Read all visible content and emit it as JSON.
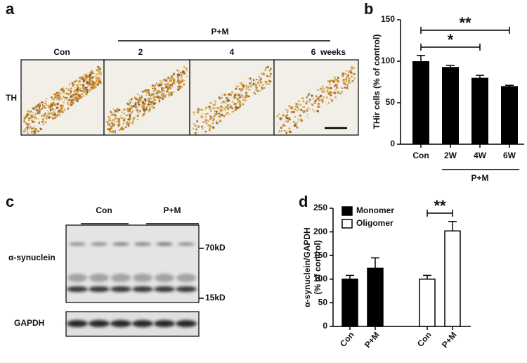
{
  "panel_a": {
    "letter": "a",
    "group_label": "P+M",
    "columns": [
      "Con",
      "2",
      "4",
      "6"
    ],
    "unit": "weeks",
    "row_label": "TH"
  },
  "panel_c": {
    "letter": "c",
    "groups": [
      "Con",
      "P+M"
    ],
    "rows": [
      "α-synuclein",
      "GAPDH"
    ],
    "markers": [
      "70kD",
      "15kD"
    ]
  },
  "chart_data": [
    {
      "type": "bar",
      "panel": "b",
      "categories": [
        "Con",
        "2W",
        "4W",
        "6W"
      ],
      "values": [
        100,
        93,
        80,
        70
      ],
      "errors": [
        7,
        2,
        3,
        1
      ],
      "color": "#000000",
      "ylim": [
        0,
        150
      ],
      "yticks": [
        0,
        50,
        100,
        150
      ],
      "ylabel": "THir cells (% of control)",
      "group_label": "P+M",
      "annotations": [
        {
          "text": "*",
          "span": [
            "Con",
            "4W"
          ]
        },
        {
          "text": "**",
          "span": [
            "Con",
            "6W"
          ]
        }
      ]
    },
    {
      "type": "grouped_bar",
      "panel": "d",
      "categories": [
        "Con",
        "P+M"
      ],
      "series": [
        {
          "name": "Monomer",
          "color": "#000000",
          "values": [
            100,
            123
          ],
          "errors": [
            8,
            22
          ]
        },
        {
          "name": "Oligomer",
          "color": "#ffffff",
          "values": [
            100,
            202
          ],
          "errors": [
            8,
            20
          ]
        }
      ],
      "ylim": [
        0,
        250
      ],
      "yticks": [
        0,
        50,
        100,
        150,
        200,
        250
      ],
      "ylabel": [
        "α-synuclein/GAPDH",
        "(% of control)"
      ],
      "annotations": [
        {
          "text": "**",
          "series": "Oligomer"
        }
      ]
    }
  ]
}
